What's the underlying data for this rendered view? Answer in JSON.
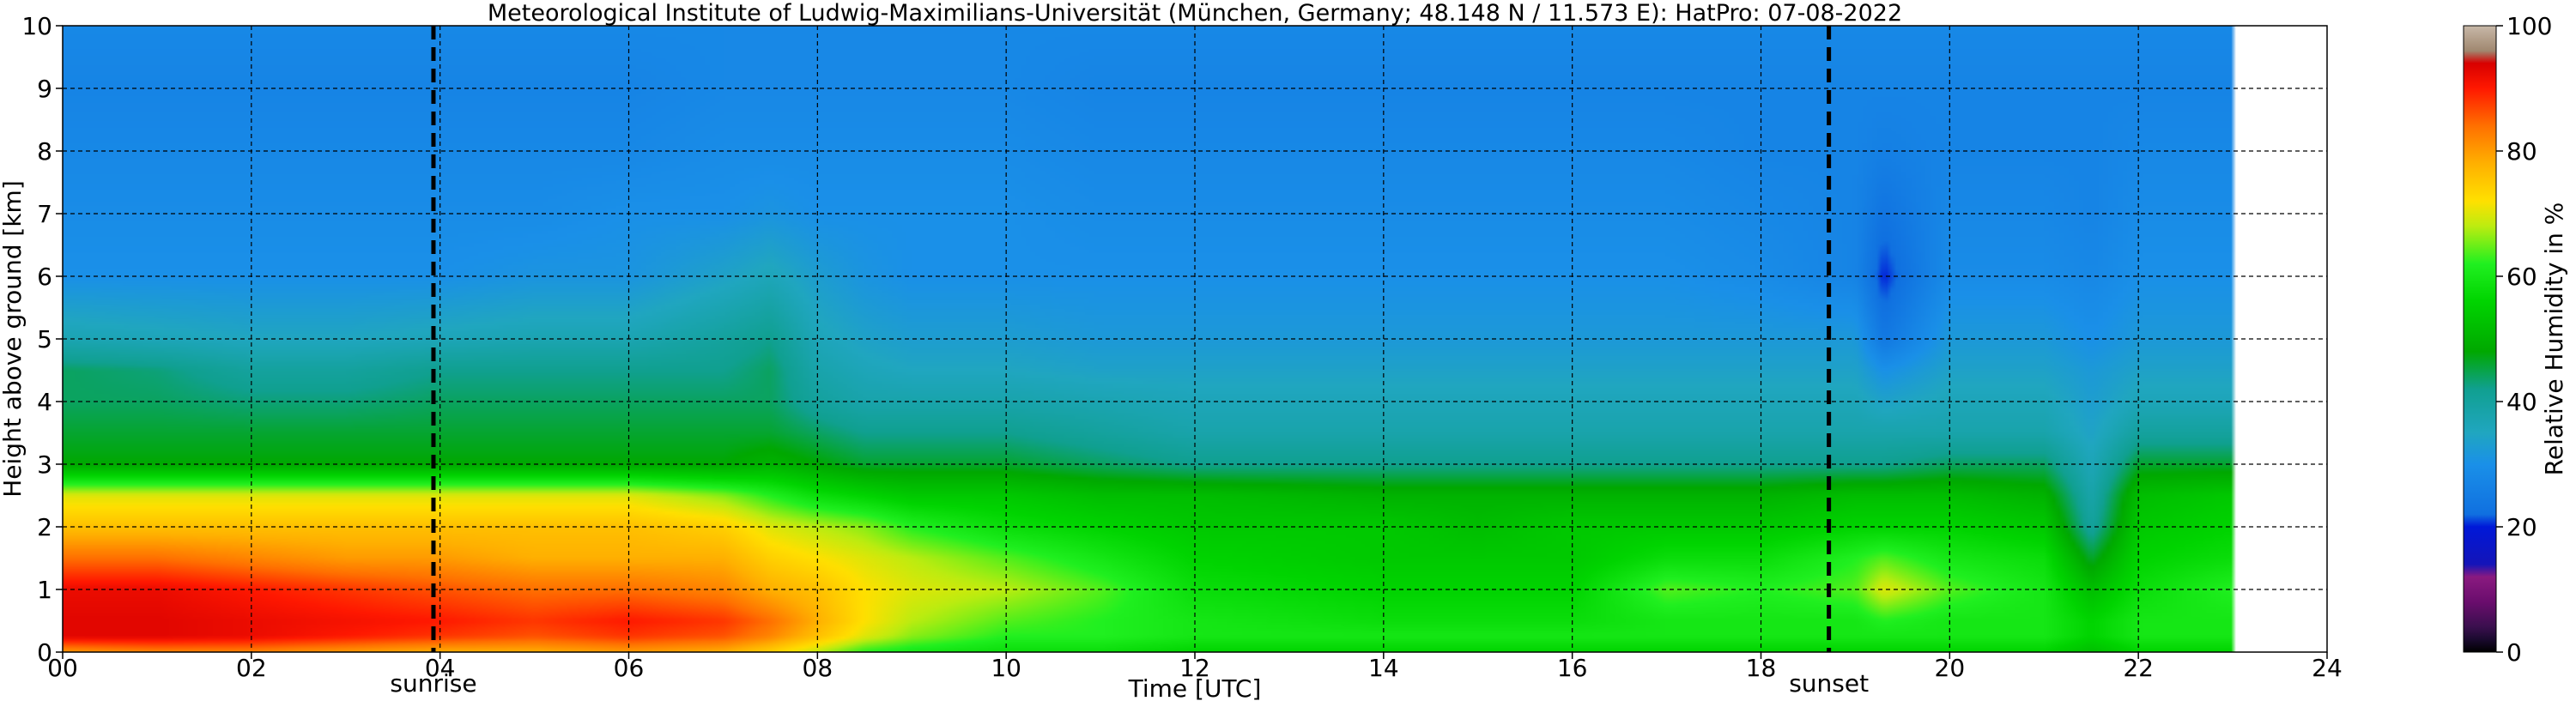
{
  "chart_data": {
    "type": "heatmap",
    "title": "Meteorological Institute of Ludwig-Maximilians-Universität (München, Germany; 48.148 N / 11.573 E):    HatPro: 07-08-2022",
    "xlabel": "Time [UTC]",
    "ylabel": "Height above ground [km]",
    "xlim": [
      0,
      24
    ],
    "ylim": [
      0,
      10
    ],
    "x_ticks": [
      0,
      2,
      4,
      6,
      8,
      10,
      12,
      14,
      16,
      18,
      20,
      22,
      24
    ],
    "x_tick_labels": [
      "00",
      "02",
      "04",
      "06",
      "08",
      "10",
      "12",
      "14",
      "16",
      "18",
      "20",
      "22",
      "24"
    ],
    "y_ticks": [
      0,
      1,
      2,
      3,
      4,
      5,
      6,
      7,
      8,
      9,
      10
    ],
    "y_tick_labels": [
      "0",
      "1",
      "2",
      "3",
      "4",
      "5",
      "6",
      "7",
      "8",
      "9",
      "10"
    ],
    "grid": true,
    "data_end_time": 23.0,
    "markers": [
      {
        "label": "sunrise",
        "x": 3.93
      },
      {
        "label": "sunset",
        "x": 18.72
      }
    ],
    "colorbar": {
      "label": "Relative Humidity in %",
      "range": [
        0,
        100
      ],
      "ticks": [
        0,
        20,
        40,
        60,
        80,
        100
      ],
      "tick_labels": [
        "0",
        "20",
        "40",
        "60",
        "80",
        "100"
      ],
      "stops": [
        {
          "v": 0,
          "color": "#000000"
        },
        {
          "v": 2,
          "color": "#1a0a2e"
        },
        {
          "v": 4,
          "color": "#3a0f4e"
        },
        {
          "v": 8,
          "color": "#6a0d6d"
        },
        {
          "v": 12,
          "color": "#8a1a80"
        },
        {
          "v": 14,
          "color": "#1414b8"
        },
        {
          "v": 20,
          "color": "#0018d8"
        },
        {
          "v": 22,
          "color": "#1070e0"
        },
        {
          "v": 30,
          "color": "#1a90e8"
        },
        {
          "v": 35,
          "color": "#20a6c0"
        },
        {
          "v": 42,
          "color": "#10a090"
        },
        {
          "v": 48,
          "color": "#00a800"
        },
        {
          "v": 56,
          "color": "#00d400"
        },
        {
          "v": 62,
          "color": "#20f020"
        },
        {
          "v": 68,
          "color": "#bcec10"
        },
        {
          "v": 72,
          "color": "#ffe000"
        },
        {
          "v": 78,
          "color": "#ffb000"
        },
        {
          "v": 84,
          "color": "#ff7000"
        },
        {
          "v": 90,
          "color": "#ff1800"
        },
        {
          "v": 94,
          "color": "#d80000"
        },
        {
          "v": 96,
          "color": "#a08870"
        },
        {
          "v": 100,
          "color": "#c8b8a8"
        }
      ]
    },
    "time_keyframes": [
      0,
      1,
      2,
      3,
      4,
      5,
      6,
      7,
      7.5,
      8,
      8.5,
      9,
      10,
      11,
      12,
      14,
      15,
      16,
      17,
      18,
      19,
      19.3,
      20,
      21,
      21.5,
      22,
      23
    ],
    "height_levels_km": [
      0,
      0.25,
      0.5,
      1,
      1.5,
      2,
      2.5,
      3,
      3.5,
      4,
      4.5,
      5,
      6,
      7,
      8,
      9,
      10
    ],
    "relative_humidity_pct": [
      [
        80,
        93,
        93,
        92,
        84,
        76,
        70,
        48,
        46,
        44,
        44,
        37,
        30,
        29,
        28,
        27,
        28
      ],
      [
        82,
        93,
        93,
        92,
        84,
        76,
        70,
        48,
        46,
        44,
        43,
        36,
        30,
        29,
        28,
        27,
        28
      ],
      [
        82,
        92,
        92,
        90,
        82,
        76,
        70,
        48,
        46,
        43,
        40,
        35,
        30,
        29,
        28,
        27,
        28
      ],
      [
        80,
        90,
        91,
        88,
        80,
        76,
        70,
        48,
        46,
        43,
        40,
        35,
        30,
        29,
        28,
        27,
        28
      ],
      [
        78,
        88,
        90,
        86,
        80,
        76,
        70,
        48,
        46,
        44,
        42,
        36,
        30,
        29,
        28,
        27,
        28
      ],
      [
        78,
        86,
        88,
        84,
        78,
        76,
        70,
        48,
        46,
        44,
        42,
        37,
        31,
        29,
        28,
        27,
        28
      ],
      [
        80,
        88,
        90,
        84,
        78,
        76,
        70,
        48,
        46,
        44,
        42,
        37,
        31,
        30,
        28,
        27,
        28
      ],
      [
        78,
        86,
        88,
        82,
        78,
        74,
        66,
        48,
        46,
        44,
        42,
        40,
        34,
        30,
        29,
        28,
        28
      ],
      [
        74,
        82,
        84,
        78,
        74,
        70,
        62,
        50,
        46,
        44,
        44,
        42,
        36,
        31,
        29,
        28,
        28
      ],
      [
        68,
        76,
        78,
        76,
        72,
        68,
        58,
        48,
        44,
        40,
        38,
        36,
        33,
        30,
        29,
        28,
        28
      ],
      [
        62,
        70,
        72,
        72,
        70,
        66,
        56,
        46,
        42,
        38,
        36,
        34,
        31,
        30,
        29,
        28,
        28
      ],
      [
        60,
        66,
        68,
        70,
        68,
        62,
        54,
        46,
        42,
        38,
        35,
        33,
        30,
        30,
        29,
        28,
        28
      ],
      [
        58,
        62,
        64,
        68,
        64,
        58,
        54,
        46,
        42,
        38,
        35,
        33,
        30,
        30,
        29,
        28,
        28
      ],
      [
        58,
        62,
        62,
        64,
        60,
        56,
        52,
        44,
        40,
        37,
        34,
        32,
        30,
        29,
        28,
        27,
        28
      ],
      [
        56,
        60,
        60,
        58,
        56,
        54,
        52,
        42,
        38,
        36,
        34,
        32,
        30,
        29,
        28,
        27,
        28
      ],
      [
        56,
        60,
        58,
        56,
        54,
        54,
        50,
        42,
        38,
        36,
        34,
        32,
        30,
        29,
        28,
        27,
        28
      ],
      [
        56,
        60,
        58,
        56,
        54,
        52,
        50,
        42,
        38,
        36,
        34,
        32,
        30,
        29,
        28,
        27,
        28
      ],
      [
        56,
        60,
        58,
        56,
        54,
        54,
        50,
        42,
        38,
        36,
        34,
        32,
        30,
        29,
        28,
        27,
        28
      ],
      [
        56,
        60,
        60,
        64,
        58,
        54,
        50,
        42,
        38,
        36,
        34,
        32,
        30,
        29,
        28,
        27,
        28
      ],
      [
        56,
        60,
        60,
        62,
        58,
        54,
        50,
        42,
        38,
        36,
        34,
        32,
        29,
        28,
        27,
        27,
        28
      ],
      [
        56,
        60,
        60,
        64,
        62,
        56,
        52,
        42,
        38,
        36,
        34,
        32,
        27,
        27,
        27,
        27,
        28
      ],
      [
        56,
        60,
        62,
        70,
        64,
        56,
        52,
        42,
        38,
        34,
        30,
        24,
        20,
        23,
        26,
        27,
        28
      ],
      [
        56,
        60,
        60,
        64,
        60,
        56,
        52,
        44,
        38,
        36,
        34,
        32,
        29,
        28,
        27,
        27,
        28
      ],
      [
        56,
        60,
        60,
        60,
        58,
        54,
        50,
        44,
        38,
        36,
        34,
        32,
        29,
        28,
        27,
        27,
        28
      ],
      [
        52,
        56,
        56,
        52,
        46,
        40,
        38,
        36,
        34,
        33,
        32,
        30,
        28,
        27,
        27,
        27,
        28
      ],
      [
        56,
        60,
        60,
        58,
        56,
        54,
        52,
        46,
        40,
        36,
        34,
        32,
        30,
        29,
        28,
        27,
        28
      ],
      [
        56,
        60,
        60,
        62,
        58,
        56,
        54,
        46,
        40,
        36,
        34,
        32,
        30,
        29,
        28,
        27,
        28
      ]
    ]
  }
}
